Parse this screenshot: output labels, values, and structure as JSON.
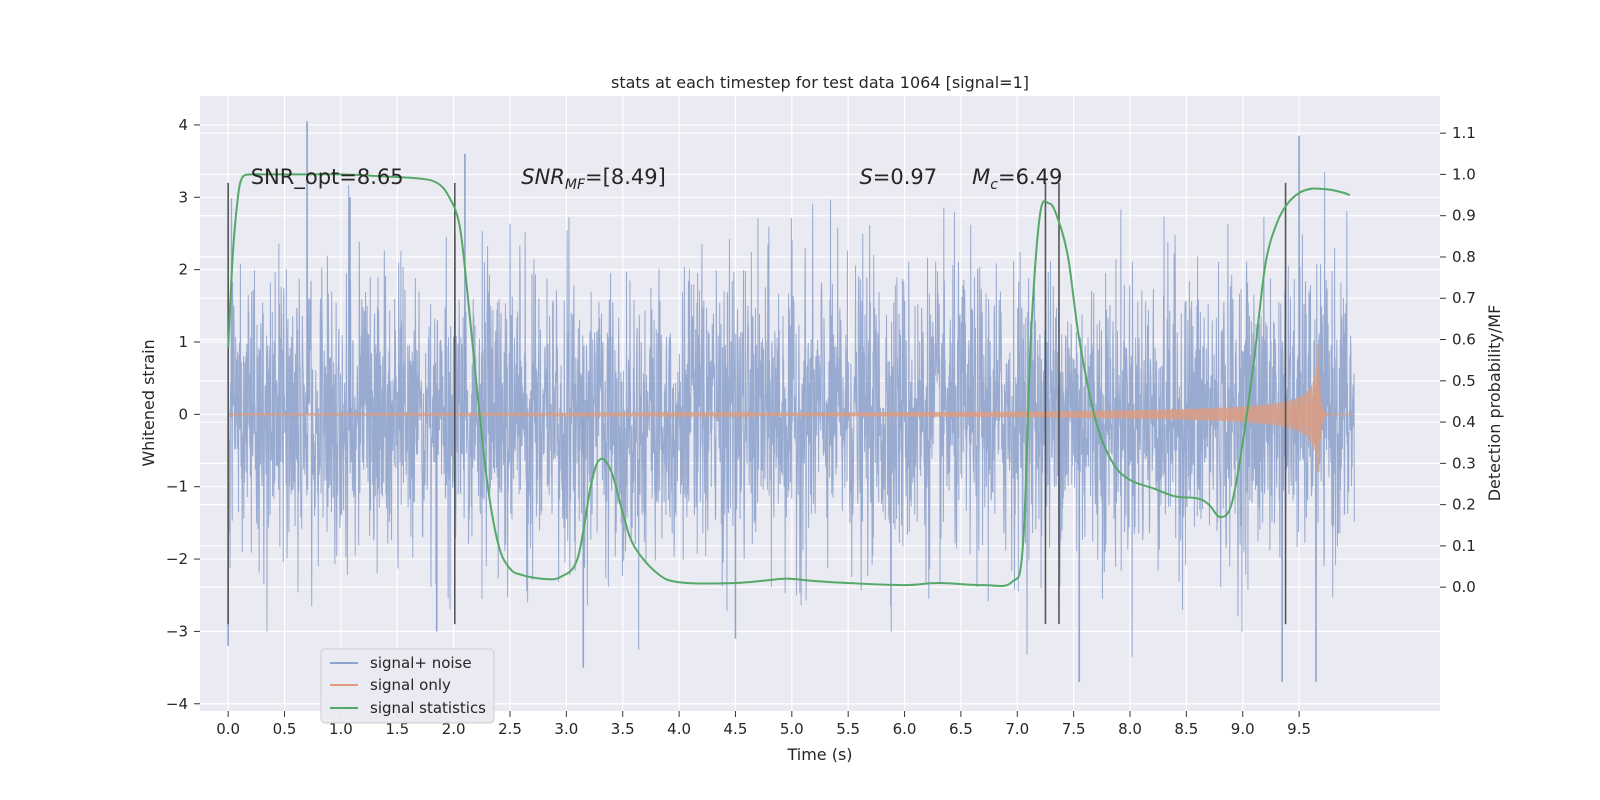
{
  "chart_data": {
    "type": "line",
    "title": "stats at each timestep for test data 1064 [signal=1]",
    "xlabel": "Time (s)",
    "ylabel": "Whitened strain",
    "y2label": "Detection probability/MF",
    "xlim": [
      -0.25,
      10.75
    ],
    "ylim": [
      -4.1,
      4.4
    ],
    "y2lim": [
      -0.3,
      1.19
    ],
    "xticks": [
      0.0,
      0.5,
      1.0,
      1.5,
      2.0,
      2.5,
      3.0,
      3.5,
      4.0,
      4.5,
      5.0,
      5.5,
      6.0,
      6.5,
      7.0,
      7.5,
      8.0,
      8.5,
      9.0,
      9.5
    ],
    "xtick_labels": [
      "0.0",
      "0.5",
      "1.0",
      "1.5",
      "2.0",
      "2.5",
      "3.0",
      "3.5",
      "4.0",
      "4.5",
      "5.0",
      "5.5",
      "6.0",
      "6.5",
      "7.0",
      "7.5",
      "8.0",
      "8.5",
      "9.0",
      "9.5"
    ],
    "yticks": [
      4,
      3,
      2,
      1,
      0,
      -1,
      -2,
      -3,
      -4
    ],
    "ytick_labels": [
      "4",
      "3",
      "2",
      "1",
      "0",
      "−1",
      "−2",
      "−3",
      "−4"
    ],
    "y2ticks": [
      1.1,
      1.0,
      0.9,
      0.8,
      0.7,
      0.6,
      0.5,
      0.4,
      0.3,
      0.2,
      0.1,
      0.0
    ],
    "y2tick_labels": [
      "1.1",
      "1.0",
      "0.9",
      "0.8",
      "0.7",
      "0.6",
      "0.5",
      "0.4",
      "0.3",
      "0.2",
      "0.1",
      "0.0"
    ],
    "grid": true,
    "legend_position": "lower-left",
    "series": [
      {
        "name": "signal+ noise",
        "axis": "left",
        "color": "#8fa3cc",
        "style": "dense-noise",
        "x_range": [
          0.0,
          9.99
        ],
        "sigma": 1.0,
        "peaks": [
          [
            0.7,
            4.05
          ],
          [
            1.08,
            3.0
          ],
          [
            2.1,
            3.6
          ],
          [
            9.5,
            3.85
          ],
          [
            3.15,
            -3.5
          ],
          [
            7.55,
            -3.7
          ],
          [
            9.35,
            -3.7
          ],
          [
            9.65,
            -3.7
          ],
          [
            0.0,
            -3.2
          ],
          [
            1.85,
            -3.0
          ],
          [
            4.5,
            -3.1
          ]
        ]
      },
      {
        "name": "signal only",
        "axis": "left",
        "color": "#dd9c80",
        "style": "chirp",
        "x_range": [
          0.0,
          9.99
        ],
        "merger_time": 9.67,
        "peak_amplitude": 1.1
      },
      {
        "name": "signal statistics",
        "axis": "right",
        "color": "#55a868",
        "x": [
          0.0,
          0.04,
          0.08,
          0.12,
          0.2,
          0.35,
          0.6,
          1.0,
          1.4,
          1.7,
          1.85,
          1.95,
          2.05,
          2.12,
          2.2,
          2.3,
          2.4,
          2.5,
          2.6,
          2.8,
          2.95,
          3.1,
          3.22,
          3.3,
          3.4,
          3.5,
          3.6,
          3.8,
          4.0,
          4.5,
          4.9,
          5.0,
          5.2,
          5.5,
          6.0,
          6.3,
          6.7,
          6.95,
          7.05,
          7.12,
          7.2,
          7.28,
          7.35,
          7.45,
          7.55,
          7.7,
          7.85,
          8.0,
          8.2,
          8.4,
          8.6,
          8.7,
          8.8,
          8.9,
          9.0,
          9.1,
          9.2,
          9.3,
          9.4,
          9.5,
          9.6,
          9.7,
          9.8,
          9.9,
          9.95
        ],
        "y": [
          0.58,
          0.8,
          0.93,
          0.99,
          1.0,
          1.0,
          1.0,
          1.0,
          0.995,
          0.99,
          0.98,
          0.95,
          0.88,
          0.72,
          0.5,
          0.25,
          0.1,
          0.045,
          0.03,
          0.02,
          0.025,
          0.07,
          0.25,
          0.31,
          0.28,
          0.18,
          0.1,
          0.035,
          0.012,
          0.01,
          0.02,
          0.02,
          0.015,
          0.01,
          0.005,
          0.01,
          0.005,
          0.012,
          0.1,
          0.6,
          0.9,
          0.93,
          0.9,
          0.8,
          0.6,
          0.4,
          0.3,
          0.26,
          0.24,
          0.22,
          0.215,
          0.2,
          0.17,
          0.2,
          0.35,
          0.55,
          0.78,
          0.88,
          0.93,
          0.955,
          0.965,
          0.965,
          0.962,
          0.955,
          0.95
        ]
      }
    ],
    "vlines": [
      {
        "x": 0.0,
        "y_range": [
          -2.9,
          3.2
        ]
      },
      {
        "x": 2.01,
        "y_range": [
          -2.9,
          3.2
        ]
      },
      {
        "x": 7.25,
        "y_range": [
          -2.9,
          3.2
        ]
      },
      {
        "x": 7.37,
        "y_range": [
          -2.9,
          3.2
        ]
      },
      {
        "x": 9.38,
        "y_range": [
          -2.9,
          3.2
        ]
      }
    ],
    "annotations": [
      {
        "x": 0.2,
        "y": 3.2,
        "main": "SNR_opt=8.65",
        "sub": "",
        "rest": ""
      },
      {
        "x": 2.6,
        "y": 3.2,
        "main": "SNR",
        "sub": "MF",
        "rest": "=[8.49]"
      },
      {
        "x": 5.6,
        "y": 3.2,
        "main": "S",
        "sub": "",
        "rest": "=0.97"
      },
      {
        "x": 6.6,
        "y": 3.2,
        "main": "M",
        "sub": "c",
        "rest": "=6.49"
      }
    ]
  }
}
